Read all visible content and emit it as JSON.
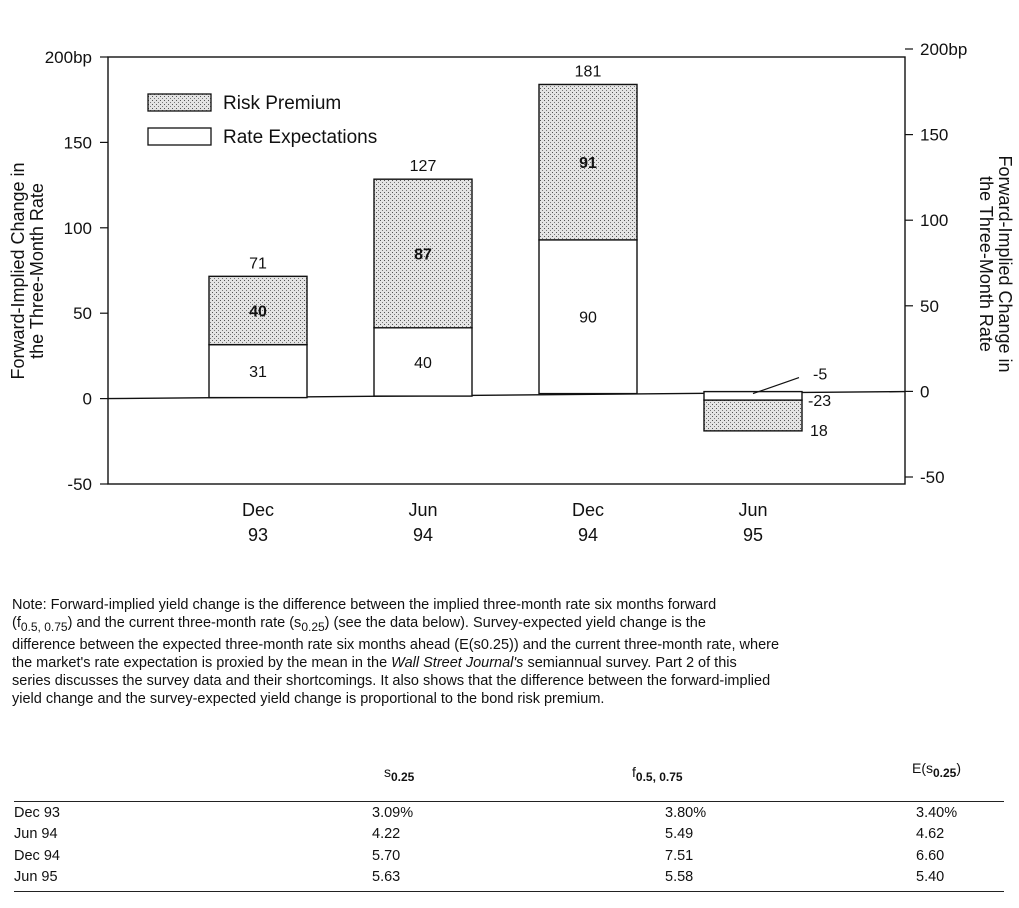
{
  "chart_data": {
    "type": "bar",
    "stacked": true,
    "categories": [
      [
        "Dec",
        "93"
      ],
      [
        "Jun",
        "94"
      ],
      [
        "Dec",
        "94"
      ],
      [
        "Jun",
        "95"
      ]
    ],
    "series": [
      {
        "name": "Rate Expectations",
        "values": [
          31,
          40,
          90,
          -23
        ],
        "labels": [
          "31",
          "40",
          "90",
          "-23"
        ]
      },
      {
        "name": "Risk Premium",
        "values": [
          40,
          87,
          91,
          18
        ],
        "labels": [
          "40",
          "87",
          "91",
          "18"
        ]
      }
    ],
    "totals": [
      71,
      127,
      181,
      -5
    ],
    "total_labels": [
      "71",
      "127",
      "181",
      "-5"
    ],
    "ylabel_left": [
      "Forward-Implied Change in",
      "the Three-Month Rate"
    ],
    "ylabel_right": [
      "Forward-Implied Change in",
      "the Three-Month Rate"
    ],
    "left_ticks": [
      200,
      150,
      100,
      50,
      0,
      -50
    ],
    "left_tick_labels": [
      "200bp",
      "150",
      "100",
      "50",
      "0",
      "-50"
    ],
    "right_ticks": [
      200,
      150,
      100,
      50,
      0,
      -50
    ],
    "right_tick_labels": [
      "200bp",
      "150",
      "100",
      "50",
      "0",
      "-50"
    ],
    "ylim_left": [
      -50,
      200
    ],
    "ylim_right": [
      -50,
      200
    ],
    "legend_position": "top-left",
    "colors": {
      "risk_premium_fill": "#d8d8d8",
      "rate_expectations_fill": "#ffffff",
      "stroke": "#111111"
    }
  },
  "note": {
    "lead": "Note: Forward-implied yield change is the difference between the implied three-month rate six months forward",
    "f_open": "(f",
    "f_sub": "0.5, 0.75",
    "mid1": ") and the current three-month rate (s",
    "s_sub": "0.25",
    "mid2": ") (see the data below). Survey-expected yield change is the",
    "line3": "difference between the expected three-month rate six months ahead (E(s0.25)) and the current three-month rate, where",
    "line4a": "the market's rate expectation is proxied by the mean in the ",
    "journal": "Wall Street Journal's",
    "line4b": " semiannual survey. Part 2 of this",
    "line5": "series discusses the survey data and their shortcomings. It also shows that the difference between the forward-implied",
    "line6": "yield change and the survey-expected yield change is proportional to the bond risk premium."
  },
  "table": {
    "headers": [
      {
        "main": "s",
        "sub": "0.25",
        "close": ""
      },
      {
        "main": "f",
        "sub": "0.5, 0.75",
        "close": ""
      },
      {
        "main": "E(s",
        "sub": "0.25",
        "close": ")"
      }
    ],
    "rows": [
      {
        "label": "Dec 93",
        "s": "3.09%",
        "f": "3.80%",
        "e": "3.40%"
      },
      {
        "label": "Jun 94",
        "s": "4.22",
        "f": "5.49",
        "e": "4.62"
      },
      {
        "label": "Dec 94",
        "s": "5.70",
        "f": "7.51",
        "e": "6.60"
      },
      {
        "label": "Jun 95",
        "s": "5.63",
        "f": "5.58",
        "e": "5.40"
      }
    ]
  }
}
